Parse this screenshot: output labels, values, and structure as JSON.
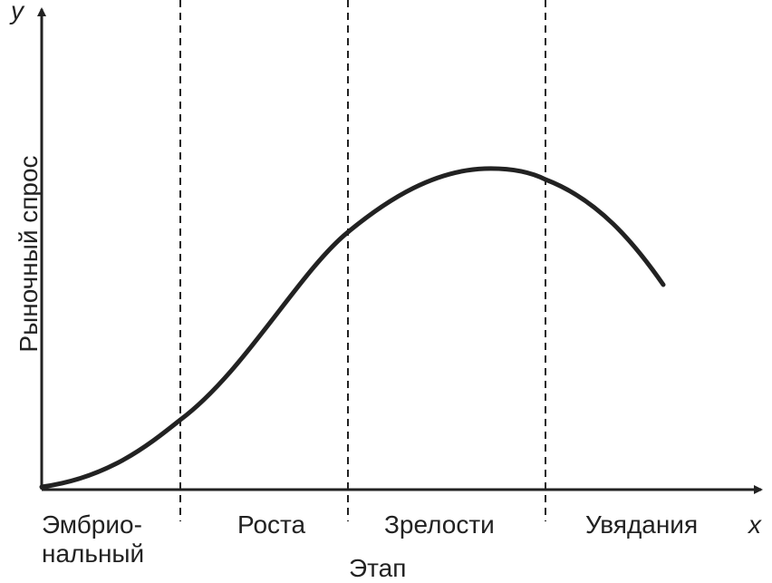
{
  "diagram": {
    "y_axis_letter": "y",
    "x_axis_letter": "x",
    "y_axis_label": "Рыночный спрос",
    "x_axis_label": "Этап",
    "stages": [
      {
        "line1": "Эмбрио-",
        "line2": "нальный"
      },
      {
        "line1": "Роста",
        "line2": ""
      },
      {
        "line1": "Зрелости",
        "line2": ""
      },
      {
        "line1": "Увядания",
        "line2": ""
      }
    ],
    "colors": {
      "axis": "#222222",
      "curve": "#222222",
      "divider": "#222222"
    }
  }
}
